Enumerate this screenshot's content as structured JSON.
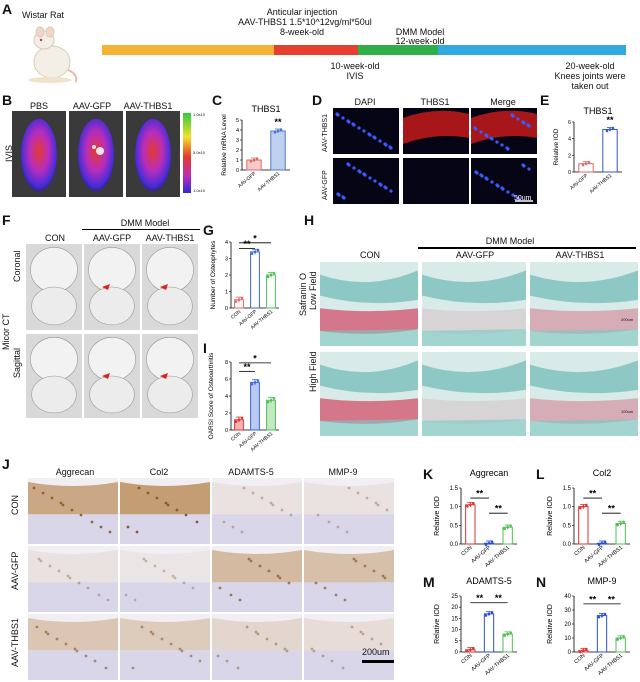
{
  "panels": {
    "A": "A",
    "B": "B",
    "C": "C",
    "D": "D",
    "E": "E",
    "F": "F",
    "G": "G",
    "H": "H",
    "I": "I",
    "J": "J",
    "K": "K",
    "L": "L",
    "M": "M",
    "N": "N"
  },
  "timeline": {
    "animal": "Wistar Rat",
    "injection_title": "Anticular injection",
    "injection_detail": "AAV-THBS1 1.5*10^12vg/ml*50ul",
    "injection_age": "8-week-old",
    "dmm_title": "DMM Model",
    "dmm_age": "12-week-old",
    "ivis_age": "10-week-old",
    "ivis": "IVIS",
    "end_age": "20-week-old",
    "end_line1": "Knees joints were",
    "end_line2": "taken out",
    "colors": [
      "#f5b335",
      "#e53f2f",
      "#2fae4a",
      "#33a9e0"
    ]
  },
  "ivis": {
    "side_label": "IVIS",
    "groups": [
      "PBS",
      "AAV-GFP",
      "AAV-THBS1"
    ],
    "scale_top": "1.0x10",
    "scale_mid": "5.0x10",
    "scale_bot": "1.0x10"
  },
  "panelC": {
    "title": "THBS1",
    "ylabel": "Relative mRNA Level",
    "sig": "**",
    "chart_data": {
      "type": "bar",
      "categories": [
        "AAV-GFP",
        "AAV-THBS1"
      ],
      "values": [
        1.0,
        3.9
      ],
      "ylim": [
        0,
        5
      ],
      "yticks": [
        0,
        1,
        2,
        3,
        4,
        5
      ],
      "colors": [
        "#e06a6a",
        "#4a78d0"
      ]
    }
  },
  "panelD": {
    "cols": [
      "DAPI",
      "THBS1",
      "Merge"
    ],
    "rows": [
      "AAV-THBS1",
      "AAV-GFP"
    ],
    "scale": "50um"
  },
  "panelE": {
    "title": "THBS1",
    "ylabel": "Relative IOD",
    "sig": "**",
    "chart_data": {
      "type": "bar",
      "categories": [
        "AAV-GFP",
        "AAV-THBS1"
      ],
      "values": [
        1.0,
        5.1
      ],
      "ylim": [
        0,
        6
      ],
      "yticks": [
        0,
        2,
        4,
        6
      ],
      "colors": [
        "#e06a6a",
        "#3358c7"
      ]
    }
  },
  "panelF": {
    "dmm": "DMM Model",
    "groups": [
      "CON",
      "AAV-GFP",
      "AAV-THBS1"
    ],
    "rows": [
      "Coronal",
      "Sagittal"
    ],
    "side": "Micor CT"
  },
  "panelG": {
    "ylabel": "Number of Osteophytes",
    "sig1": "*",
    "sig2": "**",
    "chart_data": {
      "type": "bar",
      "categories": [
        "CON",
        "AAV-GFP",
        "AAV-THBS1"
      ],
      "values": [
        0.5,
        3.4,
        2.0
      ],
      "ylim": [
        0,
        4
      ],
      "yticks": [
        0,
        1,
        2,
        3,
        4
      ],
      "colors": [
        "#e06a6a",
        "#3a66d6",
        "#4fbf52"
      ]
    }
  },
  "panelI": {
    "ylabel": "OARSI Score of Osteoarthritis",
    "sig1": "*",
    "sig2": "**",
    "chart_data": {
      "type": "bar",
      "categories": [
        "CON",
        "AAV-GFP",
        "AAV-THBS1"
      ],
      "values": [
        1.2,
        5.6,
        3.5
      ],
      "ylim": [
        0,
        8
      ],
      "yticks": [
        0,
        2,
        4,
        6,
        8
      ],
      "colors": [
        "#e03030",
        "#3a66d6",
        "#4fbf52"
      ]
    }
  },
  "panelH": {
    "dmm": "DMM Model",
    "groups": [
      "CON",
      "AAV-GFP",
      "AAV-THBS1"
    ],
    "rows": [
      "Low Field",
      "High Field"
    ],
    "side": "Safranin O",
    "scale1": "200um",
    "scale2": "100um"
  },
  "panelJ": {
    "cols": [
      "Aggrecan",
      "Col2",
      "ADAMTS-5",
      "MMP-9"
    ],
    "rows": [
      "CON",
      "AAV-GFP",
      "AAV-THBS1"
    ],
    "scale": "200um"
  },
  "panelK": {
    "title": "Aggrecan",
    "ylabel": "Relative IOD",
    "sig1": "**",
    "sig2": "**",
    "chart_data": {
      "type": "bar",
      "categories": [
        "CON",
        "AAV-GFP",
        "AAV-THBS1"
      ],
      "values": [
        1.05,
        0.02,
        0.45
      ],
      "ylim": [
        0,
        1.5
      ],
      "yticks": [
        0.0,
        0.5,
        1.0,
        1.5
      ],
      "colors": [
        "#e03030",
        "#2a4fd6",
        "#4fbf52"
      ]
    }
  },
  "panelL": {
    "title": "Col2",
    "ylabel": "Relative IOD",
    "sig1": "**",
    "sig2": "**",
    "chart_data": {
      "type": "bar",
      "categories": [
        "CON",
        "AAV-GFP",
        "AAV-THBS1"
      ],
      "values": [
        1.0,
        0.02,
        0.55
      ],
      "ylim": [
        0,
        1.5
      ],
      "yticks": [
        0.0,
        0.5,
        1.0,
        1.5
      ],
      "colors": [
        "#e03030",
        "#2a4fd6",
        "#4fbf52"
      ]
    }
  },
  "panelM": {
    "title": "ADAMTS-5",
    "ylabel": "Relative IOD",
    "sig1": "**",
    "sig2": "**",
    "chart_data": {
      "type": "bar",
      "categories": [
        "CON",
        "AAV-GFP",
        "AAV-THBS1"
      ],
      "values": [
        1.0,
        17,
        8
      ],
      "ylim": [
        0,
        25
      ],
      "yticks": [
        0,
        5,
        10,
        15,
        20,
        25
      ],
      "colors": [
        "#e03030",
        "#2a4fd6",
        "#4fbf52"
      ]
    }
  },
  "panelN": {
    "title": "MMP-9",
    "ylabel": "Relative IOD",
    "sig1": "**",
    "sig2": "**",
    "chart_data": {
      "type": "bar",
      "categories": [
        "CON",
        "AAV-GFP",
        "AAV-THBS1"
      ],
      "values": [
        1.0,
        26,
        10
      ],
      "ylim": [
        0,
        40
      ],
      "yticks": [
        0,
        10,
        20,
        30,
        40
      ],
      "colors": [
        "#e03030",
        "#2a4fd6",
        "#4fbf52"
      ]
    }
  }
}
